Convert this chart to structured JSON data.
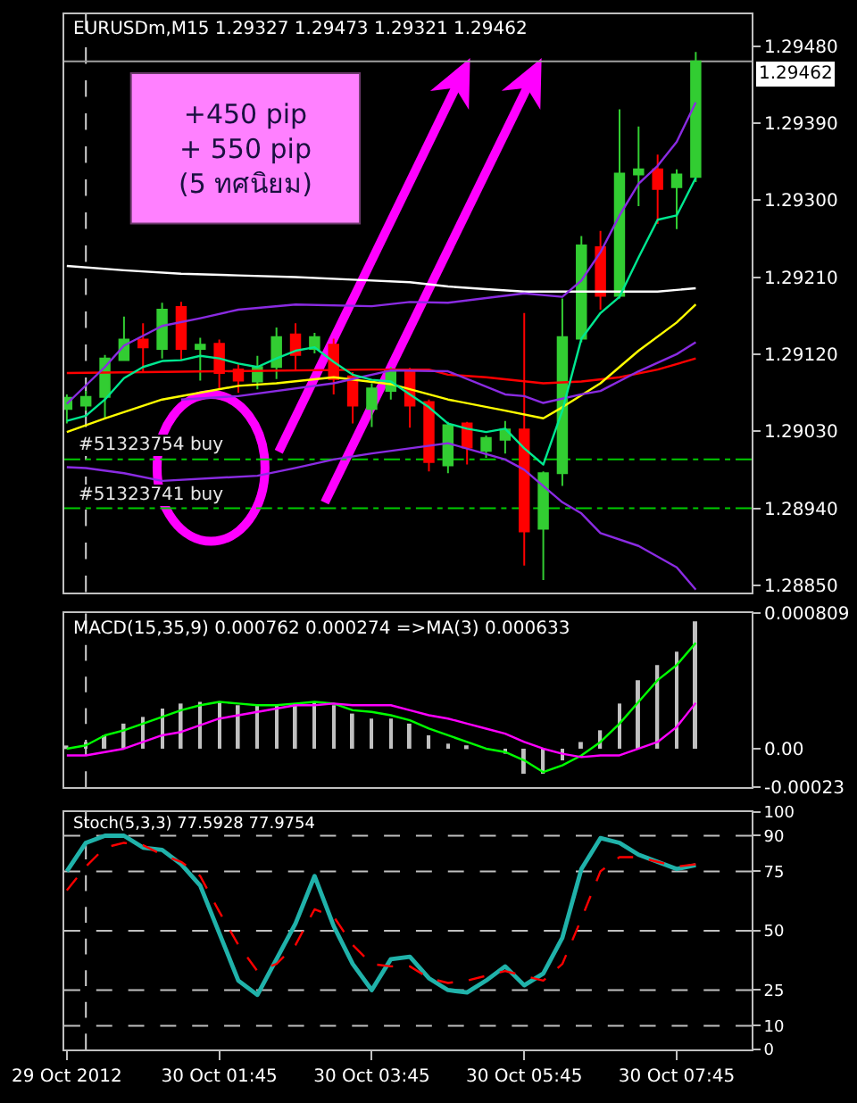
{
  "chart_data": [
    {
      "type": "candlestick",
      "title": "EURUSDm,M15 1.29327 1.29473 1.29321 1.29462",
      "x": [
        "2012-10-29T23:45",
        "2012-10-30T00:00",
        "2012-10-30T00:15",
        "2012-10-30T00:30",
        "2012-10-30T00:45",
        "2012-10-30T01:00",
        "2012-10-30T01:15",
        "2012-10-30T01:30",
        "2012-10-30T01:45",
        "2012-10-30T02:00",
        "2012-10-30T02:15",
        "2012-10-30T02:30",
        "2012-10-30T02:45",
        "2012-10-30T03:00",
        "2012-10-30T03:15",
        "2012-10-30T03:30",
        "2012-10-30T03:45",
        "2012-10-30T04:00",
        "2012-10-30T04:15",
        "2012-10-30T04:30",
        "2012-10-30T04:45",
        "2012-10-30T05:00",
        "2012-10-30T05:15",
        "2012-10-30T05:30",
        "2012-10-30T05:45",
        "2012-10-30T06:00",
        "2012-10-30T06:15",
        "2012-10-30T06:30",
        "2012-10-30T06:45",
        "2012-10-30T07:00",
        "2012-10-30T07:15",
        "2012-10-30T07:30",
        "2012-10-30T07:45",
        "2012-10-30T08:00"
      ],
      "ohlc": [
        [
          1.29056,
          1.29073,
          1.29039,
          1.29069
        ],
        [
          1.2906,
          1.29077,
          1.29054,
          1.2907
        ],
        [
          1.2907,
          1.29119,
          1.29045,
          1.29115
        ],
        [
          1.29113,
          1.29164,
          1.29112,
          1.29137
        ],
        [
          1.29137,
          1.29156,
          1.291,
          1.29128
        ],
        [
          1.29126,
          1.2918,
          1.29115,
          1.29172
        ],
        [
          1.29175,
          1.29181,
          1.29113,
          1.29126
        ],
        [
          1.29126,
          1.29139,
          1.29089,
          1.29131
        ],
        [
          1.29132,
          1.29137,
          1.29079,
          1.29098
        ],
        [
          1.29102,
          1.29108,
          1.29075,
          1.29089
        ],
        [
          1.29088,
          1.29118,
          1.29079,
          1.29105
        ],
        [
          1.29105,
          1.29151,
          1.29091,
          1.2914
        ],
        [
          1.29143,
          1.29156,
          1.29102,
          1.29119
        ],
        [
          1.29126,
          1.29145,
          1.29121,
          1.2914
        ],
        [
          1.29131,
          1.29138,
          1.29073,
          1.29091
        ],
        [
          1.29094,
          1.29099,
          1.29039,
          1.2906
        ],
        [
          1.29056,
          1.29086,
          1.29035,
          1.2908
        ],
        [
          1.29077,
          1.29105,
          1.29067,
          1.291
        ],
        [
          1.29099,
          1.29104,
          1.29034,
          1.2906
        ],
        [
          1.29064,
          1.29067,
          1.28983,
          1.28994
        ],
        [
          1.2899,
          1.29041,
          1.28981,
          1.29037
        ],
        [
          1.29039,
          1.29041,
          1.28991,
          1.29011
        ],
        [
          1.29007,
          1.29025,
          1.28999,
          1.29022
        ],
        [
          1.2902,
          1.29042,
          1.29004,
          1.29032
        ],
        [
          1.29032,
          1.29168,
          1.28873,
          1.28913
        ],
        [
          1.28916,
          1.28983,
          1.28856,
          1.28981
        ],
        [
          1.28981,
          1.29185,
          1.28966,
          1.2914
        ],
        [
          1.29138,
          1.29258,
          1.29134,
          1.29247
        ],
        [
          1.29245,
          1.29264,
          1.29172,
          1.29188
        ],
        [
          1.29188,
          1.29406,
          1.29185,
          1.29331
        ],
        [
          1.2933,
          1.29386,
          1.29293,
          1.29336
        ],
        [
          1.29336,
          1.29353,
          1.29272,
          1.29313
        ],
        [
          1.29315,
          1.29336,
          1.29266,
          1.2933
        ],
        [
          1.29327,
          1.29473,
          1.29321,
          1.29462
        ]
      ],
      "colors": [
        "#32cd32",
        "#32cd32",
        "#32cd32",
        "#32cd32",
        "#ff0000",
        "#32cd32",
        "#ff0000",
        "#32cd32",
        "#ff0000",
        "#ff0000",
        "#32cd32",
        "#32cd32",
        "#ff0000",
        "#32cd32",
        "#ff0000",
        "#ff0000",
        "#32cd32",
        "#32cd32",
        "#ff0000",
        "#ff0000",
        "#32cd32",
        "#ff0000",
        "#32cd32",
        "#32cd32",
        "#ff0000",
        "#32cd32",
        "#32cd32",
        "#32cd32",
        "#ff0000",
        "#32cd32",
        "#32cd32",
        "#ff0000",
        "#32cd32",
        "#32cd32"
      ],
      "series": [
        {
          "type": "line",
          "color": "#ffffff",
          "x": [
            "2012-10-29T23:45",
            "2012-10-30T00:30",
            "2012-10-30T01:15",
            "2012-10-30T02:00",
            "2012-10-30T02:45",
            "2012-10-30T03:30",
            "2012-10-30T04:15",
            "2012-10-30T04:45",
            "2012-10-30T05:15",
            "2012-10-30T05:45",
            "2012-10-30T06:45",
            "2012-10-30T07:30",
            "2012-10-30T08:00"
          ],
          "values": [
            1.29223,
            1.29218,
            1.29214,
            1.29212,
            1.2921,
            1.29207,
            1.29204,
            1.29199,
            1.29196,
            1.29193,
            1.29193,
            1.29193,
            1.29197
          ]
        },
        {
          "type": "line",
          "color": "#ff0000",
          "x": [
            "2012-10-29T23:45",
            "2012-10-30T01:45",
            "2012-10-30T03:45",
            "2012-10-30T04:30",
            "2012-10-30T04:45",
            "2012-10-30T05:15",
            "2012-10-30T06:00",
            "2012-10-30T06:30",
            "2012-10-30T07:00",
            "2012-10-30T07:30",
            "2012-10-30T08:00"
          ],
          "values": [
            1.29098,
            1.291,
            1.29102,
            1.29102,
            1.29096,
            1.29093,
            1.29086,
            1.29088,
            1.29093,
            1.29102,
            1.29115
          ]
        },
        {
          "type": "line",
          "color": "#ffff00",
          "x": [
            "2012-10-29T23:45",
            "2012-10-30T00:15",
            "2012-10-30T01:00",
            "2012-10-30T02:00",
            "2012-10-30T02:30",
            "2012-10-30T03:15",
            "2012-10-30T04:00",
            "2012-10-30T04:45",
            "2012-10-30T05:30",
            "2012-10-30T06:00",
            "2012-10-30T06:15",
            "2012-10-30T06:45",
            "2012-10-30T07:15",
            "2012-10-30T07:45",
            "2012-10-30T08:00"
          ],
          "values": [
            1.29029,
            1.29045,
            1.29067,
            1.29083,
            1.29086,
            1.29093,
            1.29085,
            1.29067,
            1.29054,
            1.29045,
            1.29058,
            1.29086,
            1.29124,
            1.29157,
            1.29178
          ]
        },
        {
          "type": "line",
          "color": "#8a2be2",
          "x": [
            "2012-10-29T23:45",
            "2012-10-30T00:15",
            "2012-10-30T00:30",
            "2012-10-30T01:00",
            "2012-10-30T01:30",
            "2012-10-30T02:00",
            "2012-10-30T02:45",
            "2012-10-30T03:45",
            "2012-10-30T04:15",
            "2012-10-30T04:45",
            "2012-10-30T05:45",
            "2012-10-30T06:15",
            "2012-10-30T06:30",
            "2012-10-30T06:45",
            "2012-10-30T07:00",
            "2012-10-30T07:15",
            "2012-10-30T07:30",
            "2012-10-30T07:45",
            "2012-10-30T08:00"
          ],
          "values": [
            1.29062,
            1.29105,
            1.2913,
            1.29153,
            1.29162,
            1.29172,
            1.29178,
            1.29176,
            1.29181,
            1.2918,
            1.29191,
            1.29187,
            1.29206,
            1.29239,
            1.29282,
            1.29319,
            1.2934,
            1.29368,
            1.29414
          ]
        },
        {
          "type": "line",
          "color": "#8a2be2",
          "x": [
            "2012-10-30T01:15",
            "2012-10-30T02:00",
            "2012-10-30T03:15",
            "2012-10-30T04:00",
            "2012-10-30T04:45",
            "2012-10-30T05:30",
            "2012-10-30T05:45",
            "2012-10-30T06:00",
            "2012-10-30T06:30",
            "2012-10-30T06:45",
            "2012-10-30T07:15",
            "2012-10-30T07:45",
            "2012-10-30T08:00"
          ],
          "values": [
            1.29067,
            1.29071,
            1.29086,
            1.29101,
            1.291,
            1.29073,
            1.29071,
            1.29063,
            1.29073,
            1.29077,
            1.291,
            1.2912,
            1.29134
          ]
        },
        {
          "type": "line",
          "color": "#8a2be2",
          "x": [
            "2012-10-29T23:45",
            "2012-10-30T00:00",
            "2012-10-30T00:30",
            "2012-10-30T01:00",
            "2012-10-30T02:15",
            "2012-10-30T02:45",
            "2012-10-30T03:15",
            "2012-10-30T03:45",
            "2012-10-30T04:45",
            "2012-10-30T05:30",
            "2012-10-30T05:45",
            "2012-10-30T06:15",
            "2012-10-30T06:30",
            "2012-10-30T06:45",
            "2012-10-30T07:15",
            "2012-10-30T07:45",
            "2012-10-30T08:00"
          ],
          "values": [
            1.28988,
            1.28987,
            1.28981,
            1.28972,
            1.28978,
            1.28987,
            1.28997,
            1.29004,
            1.29016,
            1.28997,
            1.28985,
            1.28947,
            1.28934,
            1.28911,
            1.28896,
            1.28871,
            1.28845
          ]
        },
        {
          "type": "line",
          "color": "#00e890",
          "values": [
            1.29042,
            1.29048,
            1.29067,
            1.29092,
            1.29105,
            1.29112,
            1.29113,
            1.29118,
            1.29115,
            1.29109,
            1.29105,
            1.29115,
            1.29124,
            1.29128,
            1.29111,
            1.29096,
            1.2909,
            1.29088,
            1.29073,
            1.29058,
            1.29039,
            1.29033,
            1.29029,
            1.29033,
            1.2901,
            1.28991,
            1.29054,
            1.29138,
            1.29168,
            1.29187,
            1.29233,
            1.29277,
            1.29282,
            1.29326
          ]
        }
      ],
      "xlim": [
        "2012-10-29T23:43",
        "2012-10-30T08:44"
      ],
      "ylim": [
        1.28842,
        1.29517
      ],
      "yticks": [
        {
          "value": 1.2885,
          "label": "1.28850"
        },
        {
          "value": 1.2894,
          "label": "1.28940"
        },
        {
          "value": 1.2903,
          "label": "1.29030"
        },
        {
          "value": 1.2912,
          "label": "1.29120"
        },
        {
          "value": 1.2921,
          "label": "1.29210"
        },
        {
          "value": 1.293,
          "label": "1.29300"
        },
        {
          "value": 1.2939,
          "label": "1.29390"
        },
        {
          "value": 1.2948,
          "label": "1.29480"
        }
      ],
      "ref_lines": [
        {
          "axis": "x",
          "value": "2012-10-30T00:00",
          "color": "#d0d0d0",
          "line_style": "dashed"
        },
        {
          "axis": "y",
          "value": 1.29462,
          "label": "1.29462",
          "color": "#a0a0a0"
        },
        {
          "axis": "y",
          "value": 1.28997,
          "color": "#00cc00",
          "line_style": "dashdot"
        },
        {
          "axis": "y",
          "value": 1.2894,
          "color": "#00cc00",
          "line_style": "dashdot"
        }
      ],
      "annotations": [
        "+450 pip\n+ 550 pip\n(5 ทศนิยม)",
        {
          "text": "#51323754 buy",
          "x": "2012-10-29T23:45",
          "y": 1.28997
        },
        {
          "text": "#51323741 buy",
          "x": "2012-10-29T23:45",
          "y": 1.2894
        }
      ],
      "tick_labels": "y"
    },
    {
      "type": "bar",
      "title": "MACD(15,35,9) 0.000762 0.000274 =>MA(3) 0.000633",
      "x": [
        "2012-10-29T23:45",
        "2012-10-30T00:00",
        "2012-10-30T00:15",
        "2012-10-30T00:30",
        "2012-10-30T00:45",
        "2012-10-30T01:00",
        "2012-10-30T01:15",
        "2012-10-30T01:30",
        "2012-10-30T01:45",
        "2012-10-30T02:00",
        "2012-10-30T02:15",
        "2012-10-30T02:30",
        "2012-10-30T02:45",
        "2012-10-30T03:00",
        "2012-10-30T03:15",
        "2012-10-30T03:30",
        "2012-10-30T03:45",
        "2012-10-30T04:00",
        "2012-10-30T04:15",
        "2012-10-30T04:30",
        "2012-10-30T04:45",
        "2012-10-30T05:00",
        "2012-10-30T05:15",
        "2012-10-30T05:30",
        "2012-10-30T05:45",
        "2012-10-30T06:00",
        "2012-10-30T06:15",
        "2012-10-30T06:30",
        "2012-10-30T06:45",
        "2012-10-30T07:00",
        "2012-10-30T07:15",
        "2012-10-30T07:30",
        "2012-10-30T07:45",
        "2012-10-30T08:00"
      ],
      "series": [
        {
          "color": "#c0c0c0",
          "values": [
            1e-05,
            4e-05,
            8e-05,
            0.00015,
            0.00019,
            0.00024,
            0.00027,
            0.00028,
            0.00028,
            0.00026,
            0.00026,
            0.00026,
            0.00027,
            0.00028,
            0.00026,
            0.00021,
            0.00018,
            0.00018,
            0.00015,
            8e-05,
            3e-05,
            2e-05,
            0.0,
            -3e-05,
            -0.00015,
            -0.00015,
            -7e-05,
            4e-05,
            0.00011,
            0.00027,
            0.00041,
            0.0005,
            0.00058,
            0.000762
          ]
        },
        {
          "type": "line",
          "color": "#00ff00",
          "values": [
            0.0,
            2e-05,
            8e-05,
            0.00011,
            0.00015,
            0.00019,
            0.00023,
            0.00026,
            0.00028,
            0.00027,
            0.00026,
            0.00026,
            0.00027,
            0.00028,
            0.00027,
            0.00023,
            0.00022,
            0.0002,
            0.00017,
            0.00012,
            8e-05,
            4e-05,
            0.0,
            -2e-05,
            -7e-05,
            -0.00014,
            -0.0001,
            -4e-05,
            4e-05,
            0.00015,
            0.00028,
            0.00041,
            0.0005,
            0.000633
          ]
        },
        {
          "type": "line",
          "color": "#ff00ff",
          "values": [
            -4e-05,
            -4e-05,
            -2e-05,
            0.0,
            4e-05,
            8e-05,
            0.0001,
            0.00014,
            0.00018,
            0.0002,
            0.00022,
            0.00024,
            0.00026,
            0.00026,
            0.00027,
            0.00026,
            0.00026,
            0.00026,
            0.00023,
            0.0002,
            0.00018,
            0.00015,
            0.00012,
            9e-05,
            4e-05,
            0.0,
            -3e-05,
            -5e-05,
            -4e-05,
            -4e-05,
            0.0,
            4e-05,
            0.00013,
            0.000274
          ]
        }
      ],
      "xlim": [
        "2012-10-29T23:43",
        "2012-10-30T08:44"
      ],
      "ylim": [
        -0.00023,
        0.000809
      ],
      "yticks": [
        -0.00023,
        {
          "value": 0,
          "label": "0.00"
        },
        0.000809
      ],
      "ref_lines": [
        {
          "axis": "x",
          "value": "2012-10-30T00:00",
          "color": "#d0d0d0",
          "line_style": "dashed"
        }
      ],
      "tick_labels": "y"
    },
    {
      "type": "line",
      "title": "Stoch(5,3,3) 77.5928 77.9754",
      "x": [
        "2012-10-29T23:45",
        "2012-10-30T00:00",
        "2012-10-30T00:15",
        "2012-10-30T00:30",
        "2012-10-30T00:45",
        "2012-10-30T01:00",
        "2012-10-30T01:15",
        "2012-10-30T01:30",
        "2012-10-30T01:45",
        "2012-10-30T02:00",
        "2012-10-30T02:15",
        "2012-10-30T02:30",
        "2012-10-30T02:45",
        "2012-10-30T03:00",
        "2012-10-30T03:15",
        "2012-10-30T03:30",
        "2012-10-30T03:45",
        "2012-10-30T04:00",
        "2012-10-30T04:15",
        "2012-10-30T04:30",
        "2012-10-30T04:45",
        "2012-10-30T05:00",
        "2012-10-30T05:15",
        "2012-10-30T05:30",
        "2012-10-30T05:45",
        "2012-10-30T06:00",
        "2012-10-30T06:15",
        "2012-10-30T06:30",
        "2012-10-30T06:45",
        "2012-10-30T07:00",
        "2012-10-30T07:15",
        "2012-10-30T07:30",
        "2012-10-30T07:45",
        "2012-10-30T08:00"
      ],
      "series": [
        {
          "color": "#20b2aa",
          "values": [
            75,
            87,
            90,
            90,
            85,
            84,
            78,
            69,
            49,
            29,
            23,
            38,
            53,
            73,
            52,
            36,
            25,
            38,
            39,
            30,
            25,
            24,
            29,
            35,
            27,
            32,
            47,
            76,
            89,
            87,
            82,
            79,
            76,
            77.5928
          ]
        },
        {
          "color": "#ff0000",
          "line_style": "dashed",
          "values": [
            67,
            77,
            85,
            87,
            86,
            82,
            79,
            73,
            58,
            44,
            33,
            36,
            44,
            59,
            56,
            44,
            36,
            35,
            35,
            30,
            28,
            29,
            31,
            33,
            31,
            29,
            36,
            55,
            75,
            81,
            81,
            79,
            77,
            77.9754
          ]
        }
      ],
      "xlim": [
        "2012-10-29T23:43",
        "2012-10-30T08:44"
      ],
      "xticks": [
        {
          "value": "2012-10-29T23:45",
          "label": "29 Oct 2012"
        },
        {
          "value": "2012-10-30T01:45",
          "label": "30 Oct 01:45"
        },
        {
          "value": "2012-10-30T03:45",
          "label": "30 Oct 03:45"
        },
        {
          "value": "2012-10-30T05:45",
          "label": "30 Oct 05:45"
        },
        {
          "value": "2012-10-30T07:45",
          "label": "30 Oct 07:45"
        }
      ],
      "ylim": [
        0,
        100
      ],
      "yticks": [
        0,
        10,
        25,
        50,
        75,
        90,
        100
      ],
      "ref_lines": [
        {
          "axis": "x",
          "value": "2012-10-30T00:00",
          "color": "#d0d0d0",
          "line_style": "dashed"
        },
        {
          "axis": "y",
          "value": 10,
          "color": "#c0c0c0",
          "line_style": "dashed"
        },
        {
          "axis": "y",
          "value": 25,
          "color": "#c0c0c0",
          "line_style": "dashed"
        },
        {
          "axis": "y",
          "value": 50,
          "color": "#c0c0c0",
          "line_style": "dashed"
        },
        {
          "axis": "y",
          "value": 75,
          "color": "#c0c0c0",
          "line_style": "dashed"
        },
        {
          "axis": "y",
          "value": 90,
          "color": "#c0c0c0",
          "line_style": "dashed"
        }
      ]
    }
  ]
}
